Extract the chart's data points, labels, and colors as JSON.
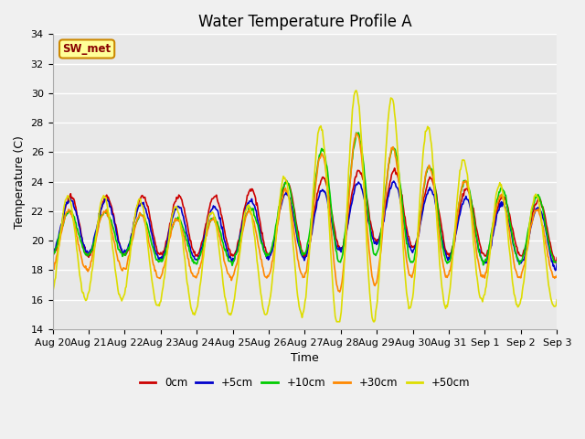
{
  "title": "Water Temperature Profile A",
  "xlabel": "Time",
  "ylabel": "Temperature (C)",
  "ylim": [
    14,
    34
  ],
  "yticks": [
    14,
    16,
    18,
    20,
    22,
    24,
    26,
    28,
    30,
    32,
    34
  ],
  "x_tick_labels": [
    "Aug 20",
    "Aug 21",
    "Aug 22",
    "Aug 23",
    "Aug 24",
    "Aug 25",
    "Aug 26",
    "Aug 27",
    "Aug 28",
    "Aug 29",
    "Aug 30",
    "Aug 31",
    "Sep 1",
    "Sep 2",
    "Sep 3"
  ],
  "series_colors": [
    "#cc0000",
    "#0000cc",
    "#00cc00",
    "#ff8800",
    "#dddd00"
  ],
  "series_labels": [
    "0cm",
    "+5cm",
    "+10cm",
    "+30cm",
    "+50cm"
  ],
  "series_linewidths": [
    1.2,
    1.2,
    1.2,
    1.2,
    1.2
  ],
  "annotation_text": "SW_met",
  "annotation_bg": "#ffff99",
  "annotation_border": "#cc8800",
  "annotation_fg": "#880000",
  "bg_color": "#e8e8e8",
  "grid_color": "#ffffff",
  "title_fontsize": 12,
  "axis_fontsize": 9,
  "tick_fontsize": 8
}
